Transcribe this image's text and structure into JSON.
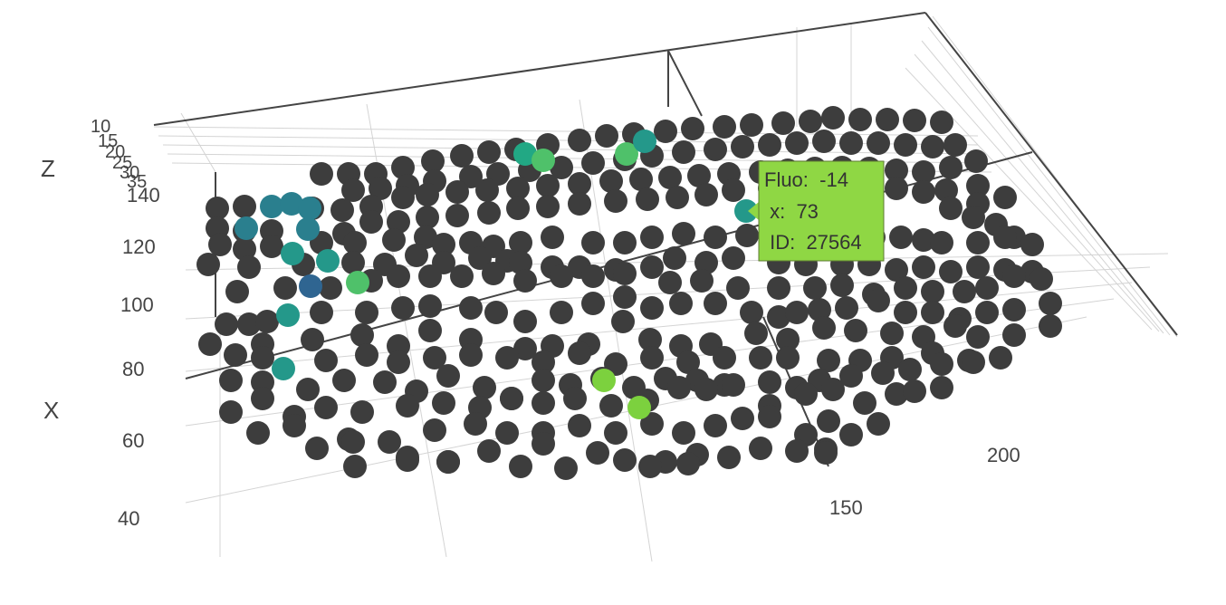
{
  "chart_data": {
    "type": "scatter3d",
    "axes": {
      "x": {
        "title": "X",
        "ticks": [
          "40",
          "60",
          "80",
          "100",
          "120",
          "140"
        ]
      },
      "y": {
        "ticks": [
          "150",
          "200"
        ]
      },
      "z": {
        "title": "Z",
        "ticks": [
          "10",
          "15",
          "20",
          "25",
          "30",
          "35"
        ]
      }
    },
    "colors": {
      "default": "#3d3d3d",
      "dark_blue": "#2f6591",
      "blue_teal": "#2a7f8e",
      "teal": "#24988a",
      "teal_green": "#22a884",
      "green": "#4fc16a",
      "light_green": "#7cd13e",
      "lime": "#8fd744"
    },
    "tooltip": {
      "lines": [
        "Fluo:  -14",
        " x:  73",
        " ID:  27564"
      ],
      "background": "#8fd744",
      "border": "#5d7a32"
    }
  }
}
